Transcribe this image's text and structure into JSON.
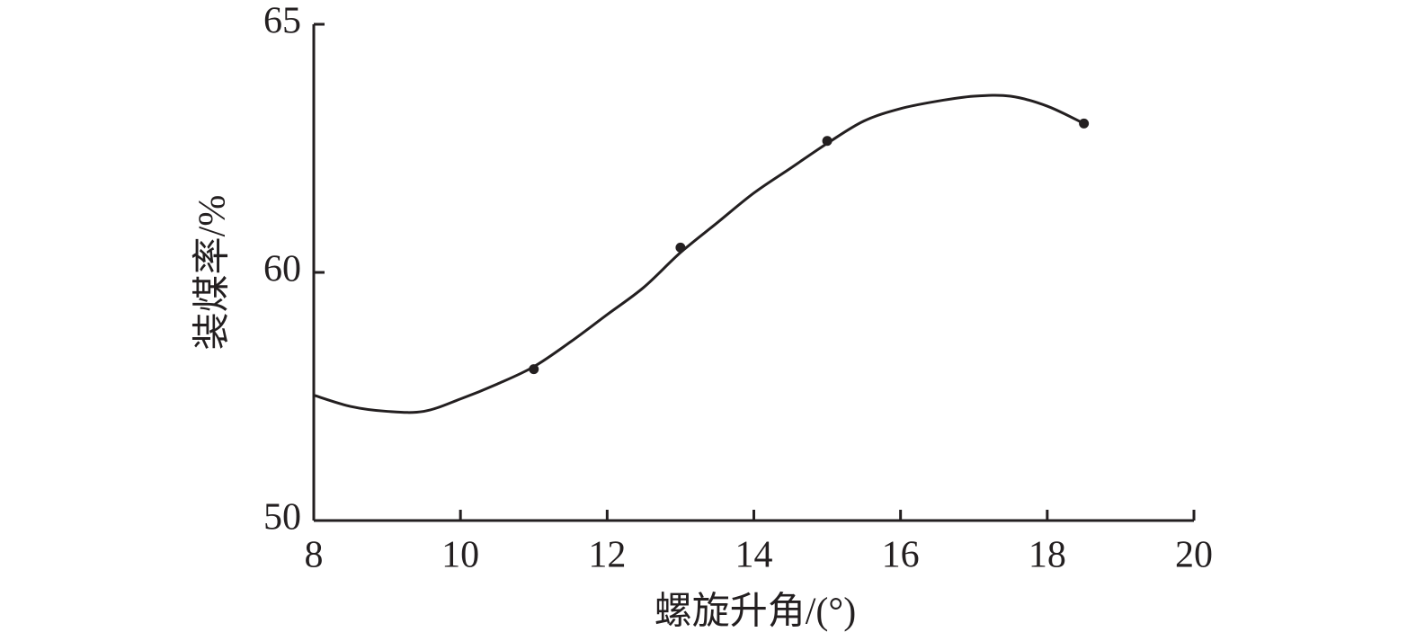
{
  "chart_data": {
    "type": "line",
    "x_label": "螺旋升角/(°)",
    "y_label": "装煤率/%",
    "xlim": [
      8,
      20
    ],
    "xticks": [
      8,
      10,
      12,
      14,
      16,
      18,
      20
    ],
    "ylim": [
      50,
      65
    ],
    "yticks": [
      50,
      60,
      65
    ],
    "color": "#231f20",
    "series": [
      {
        "type": "line",
        "x": [
          8,
          8.5,
          9,
          9.5,
          10,
          10.5,
          11,
          11.5,
          12,
          12.5,
          13,
          13.5,
          14,
          14.5,
          15,
          15.5,
          16,
          16.5,
          17,
          17.5,
          18,
          18.5
        ],
        "values": [
          55.05,
          54.6,
          54.4,
          54.4,
          54.9,
          55.5,
          56.2,
          57.2,
          58.3,
          59.4,
          60.4,
          61.0,
          61.6,
          62.1,
          62.6,
          63.05,
          63.3,
          63.45,
          63.55,
          63.55,
          63.35,
          63.0
        ]
      },
      {
        "type": "scatter",
        "x": [
          11,
          13,
          15,
          18.5
        ],
        "values": [
          56.1,
          60.5,
          62.65,
          63.0
        ]
      }
    ]
  }
}
